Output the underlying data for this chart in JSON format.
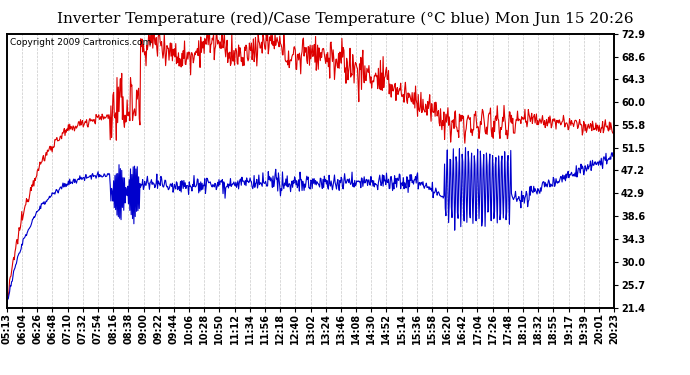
{
  "title": "Inverter Temperature (red)/Case Temperature (°C blue) Mon Jun 15 20:26",
  "copyright": "Copyright 2009 Cartronics.com",
  "y_ticks": [
    21.4,
    25.7,
    30.0,
    34.3,
    38.6,
    42.9,
    47.2,
    51.5,
    55.8,
    60.0,
    64.3,
    68.6,
    72.9
  ],
  "y_min": 21.4,
  "y_max": 72.9,
  "x_labels": [
    "05:13",
    "06:04",
    "06:26",
    "06:48",
    "07:10",
    "07:32",
    "07:54",
    "08:16",
    "08:38",
    "09:00",
    "09:22",
    "09:44",
    "10:06",
    "10:28",
    "10:50",
    "11:12",
    "11:34",
    "11:56",
    "12:18",
    "12:40",
    "13:02",
    "13:24",
    "13:46",
    "14:08",
    "14:30",
    "14:52",
    "15:14",
    "15:36",
    "15:58",
    "16:20",
    "16:42",
    "17:04",
    "17:26",
    "17:48",
    "18:10",
    "18:32",
    "18:55",
    "19:17",
    "19:39",
    "20:01",
    "20:23"
  ],
  "background_color": "#ffffff",
  "plot_bg_color": "#ffffff",
  "grid_color": "#bbbbbb",
  "red_line_color": "#dd0000",
  "blue_line_color": "#0000cc",
  "title_fontsize": 11,
  "tick_fontsize": 7,
  "copyright_fontsize": 6.5
}
